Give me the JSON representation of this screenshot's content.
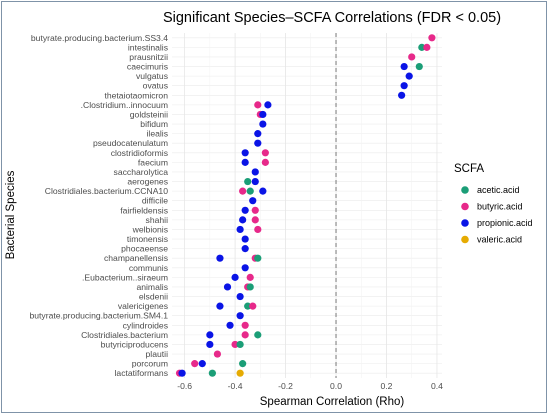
{
  "chart_data": {
    "type": "scatter",
    "title": "Significant Species–SCFA Correlations (FDR < 0.05)",
    "xlabel": "Spearman Correlation (Rho)",
    "ylabel": "Bacterial Species",
    "xlim": [
      -0.65,
      0.42
    ],
    "x_ticks": [
      -0.6,
      -0.4,
      -0.2,
      0.0,
      0.2,
      0.4
    ],
    "x_tick_labels": [
      "-0.6",
      "-0.4",
      "-0.2",
      "0.0",
      "0.2",
      "0.4"
    ],
    "reference_line_x": 0,
    "grid": true,
    "legend": {
      "title": "SCFA",
      "position": "right"
    },
    "series_colors": {
      "acetic.acid": "#1b9e77",
      "butyric.acid": "#e7298a",
      "propionic.acid": "#0a14e6",
      "valeric.acid": "#e6ab02"
    },
    "series_names": [
      "acetic.acid",
      "butyric.acid",
      "propionic.acid",
      "valeric.acid"
    ],
    "categories": [
      "butyrate.producing.bacterium.SS3.4",
      "intestinalis",
      "prausnitzii",
      "caecimuris",
      "vulgatus",
      "ovatus",
      "thetaiotaomicron",
      ".Clostridium..innocuum",
      "goldsteinii",
      "bifidum",
      "ilealis",
      "pseudocatenulatum",
      "clostridioformis",
      "faecium",
      "saccharolytica",
      "aerogenes",
      "Clostridiales.bacterium.CCNA10",
      "difficile",
      "fairfieldensis",
      "shahii",
      "welbionis",
      "timonensis",
      "phocaeense",
      "champanellensis",
      "communis",
      ".Eubacterium..siraeum",
      "animalis",
      "elsdenii",
      "valericigenes",
      "butyrate.producing.bacterium.SM4.1",
      "cylindroides",
      "Clostridiales.bacterium",
      "butyriciproducens",
      "plautii",
      "porcorum",
      "lactatiformans"
    ],
    "points": [
      {
        "species": "butyrate.producing.bacterium.SS3.4",
        "scfa": "butyric.acid",
        "rho": 0.38
      },
      {
        "species": "intestinalis",
        "scfa": "acetic.acid",
        "rho": 0.34
      },
      {
        "species": "intestinalis",
        "scfa": "butyric.acid",
        "rho": 0.36
      },
      {
        "species": "prausnitzii",
        "scfa": "butyric.acid",
        "rho": 0.3
      },
      {
        "species": "caecimuris",
        "scfa": "propionic.acid",
        "rho": 0.27
      },
      {
        "species": "caecimuris",
        "scfa": "acetic.acid",
        "rho": 0.33
      },
      {
        "species": "vulgatus",
        "scfa": "propionic.acid",
        "rho": 0.29
      },
      {
        "species": "ovatus",
        "scfa": "propionic.acid",
        "rho": 0.27
      },
      {
        "species": "thetaiotaomicron",
        "scfa": "propionic.acid",
        "rho": 0.26
      },
      {
        "species": ".Clostridium..innocuum",
        "scfa": "butyric.acid",
        "rho": -0.31
      },
      {
        "species": ".Clostridium..innocuum",
        "scfa": "propionic.acid",
        "rho": -0.27
      },
      {
        "species": "goldsteinii",
        "scfa": "butyric.acid",
        "rho": -0.3
      },
      {
        "species": "goldsteinii",
        "scfa": "propionic.acid",
        "rho": -0.29
      },
      {
        "species": "bifidum",
        "scfa": "propionic.acid",
        "rho": -0.29
      },
      {
        "species": "ilealis",
        "scfa": "propionic.acid",
        "rho": -0.31
      },
      {
        "species": "pseudocatenulatum",
        "scfa": "propionic.acid",
        "rho": -0.31
      },
      {
        "species": "clostridioformis",
        "scfa": "propionic.acid",
        "rho": -0.36
      },
      {
        "species": "clostridioformis",
        "scfa": "butyric.acid",
        "rho": -0.28
      },
      {
        "species": "faecium",
        "scfa": "propionic.acid",
        "rho": -0.36
      },
      {
        "species": "faecium",
        "scfa": "butyric.acid",
        "rho": -0.28
      },
      {
        "species": "saccharolytica",
        "scfa": "propionic.acid",
        "rho": -0.32
      },
      {
        "species": "aerogenes",
        "scfa": "acetic.acid",
        "rho": -0.35
      },
      {
        "species": "aerogenes",
        "scfa": "propionic.acid",
        "rho": -0.32
      },
      {
        "species": "Clostridiales.bacterium.CCNA10",
        "scfa": "butyric.acid",
        "rho": -0.37
      },
      {
        "species": "Clostridiales.bacterium.CCNA10",
        "scfa": "acetic.acid",
        "rho": -0.34
      },
      {
        "species": "Clostridiales.bacterium.CCNA10",
        "scfa": "propionic.acid",
        "rho": -0.29
      },
      {
        "species": "difficile",
        "scfa": "propionic.acid",
        "rho": -0.33
      },
      {
        "species": "fairfieldensis",
        "scfa": "propionic.acid",
        "rho": -0.36
      },
      {
        "species": "fairfieldensis",
        "scfa": "butyric.acid",
        "rho": -0.32
      },
      {
        "species": "shahii",
        "scfa": "propionic.acid",
        "rho": -0.37
      },
      {
        "species": "shahii",
        "scfa": "butyric.acid",
        "rho": -0.32
      },
      {
        "species": "welbionis",
        "scfa": "propionic.acid",
        "rho": -0.38
      },
      {
        "species": "welbionis",
        "scfa": "butyric.acid",
        "rho": -0.31
      },
      {
        "species": "timonensis",
        "scfa": "propionic.acid",
        "rho": -0.36
      },
      {
        "species": "phocaeense",
        "scfa": "propionic.acid",
        "rho": -0.36
      },
      {
        "species": "champanellensis",
        "scfa": "propionic.acid",
        "rho": -0.46
      },
      {
        "species": "champanellensis",
        "scfa": "butyric.acid",
        "rho": -0.32
      },
      {
        "species": "champanellensis",
        "scfa": "acetic.acid",
        "rho": -0.31
      },
      {
        "species": "communis",
        "scfa": "propionic.acid",
        "rho": -0.36
      },
      {
        "species": ".Eubacterium..siraeum",
        "scfa": "propionic.acid",
        "rho": -0.4
      },
      {
        "species": ".Eubacterium..siraeum",
        "scfa": "butyric.acid",
        "rho": -0.34
      },
      {
        "species": "animalis",
        "scfa": "propionic.acid",
        "rho": -0.43
      },
      {
        "species": "animalis",
        "scfa": "butyric.acid",
        "rho": -0.35
      },
      {
        "species": "animalis",
        "scfa": "acetic.acid",
        "rho": -0.34
      },
      {
        "species": "elsdenii",
        "scfa": "propionic.acid",
        "rho": -0.38
      },
      {
        "species": "valericigenes",
        "scfa": "propionic.acid",
        "rho": -0.46
      },
      {
        "species": "valericigenes",
        "scfa": "acetic.acid",
        "rho": -0.35
      },
      {
        "species": "valericigenes",
        "scfa": "butyric.acid",
        "rho": -0.33
      },
      {
        "species": "butyrate.producing.bacterium.SM4.1",
        "scfa": "propionic.acid",
        "rho": -0.38
      },
      {
        "species": "cylindroides",
        "scfa": "propionic.acid",
        "rho": -0.42
      },
      {
        "species": "cylindroides",
        "scfa": "butyric.acid",
        "rho": -0.36
      },
      {
        "species": "Clostridiales.bacterium",
        "scfa": "propionic.acid",
        "rho": -0.5
      },
      {
        "species": "Clostridiales.bacterium",
        "scfa": "butyric.acid",
        "rho": -0.36
      },
      {
        "species": "Clostridiales.bacterium",
        "scfa": "acetic.acid",
        "rho": -0.31
      },
      {
        "species": "butyriciproducens",
        "scfa": "propionic.acid",
        "rho": -0.5
      },
      {
        "species": "butyriciproducens",
        "scfa": "butyric.acid",
        "rho": -0.4
      },
      {
        "species": "butyriciproducens",
        "scfa": "acetic.acid",
        "rho": -0.38
      },
      {
        "species": "plautii",
        "scfa": "butyric.acid",
        "rho": -0.47
      },
      {
        "species": "porcorum",
        "scfa": "butyric.acid",
        "rho": -0.56
      },
      {
        "species": "porcorum",
        "scfa": "propionic.acid",
        "rho": -0.53
      },
      {
        "species": "porcorum",
        "scfa": "acetic.acid",
        "rho": -0.37
      },
      {
        "species": "lactatiformans",
        "scfa": "butyric.acid",
        "rho": -0.62
      },
      {
        "species": "lactatiformans",
        "scfa": "propionic.acid",
        "rho": -0.61
      },
      {
        "species": "lactatiformans",
        "scfa": "acetic.acid",
        "rho": -0.49
      },
      {
        "species": "lactatiformans",
        "scfa": "valeric.acid",
        "rho": -0.38
      }
    ]
  }
}
